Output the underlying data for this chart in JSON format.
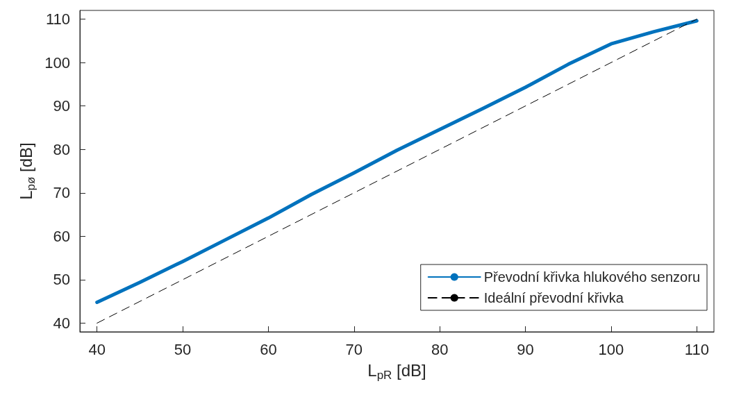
{
  "chart_data": {
    "type": "line",
    "xlabel": "L$_{pR}$ [dB]",
    "ylabel": "L$_{pø}$ [dB]",
    "series": [
      {
        "name": "Převodní křivka hlukového senzoru",
        "color": "#0072bd",
        "line_style": "solid",
        "x": [
          40,
          45,
          50,
          55,
          60,
          65,
          70,
          75,
          80,
          85,
          90,
          95,
          100,
          105,
          110
        ],
        "values": [
          44.8,
          49.4,
          54.2,
          59.2,
          64.2,
          69.6,
          74.6,
          79.8,
          84.6,
          89.4,
          94.3,
          99.6,
          104.3,
          107.1,
          109.6
        ]
      },
      {
        "name": "Ideální převodní křivka",
        "color": "#000000",
        "line_style": "dashed",
        "x": [
          40,
          110
        ],
        "values": [
          40,
          110
        ]
      }
    ],
    "xlim": [
      38,
      112
    ],
    "xticks": [
      40,
      50,
      60,
      70,
      80,
      90,
      100,
      110
    ],
    "ylim": [
      38,
      112
    ],
    "yticks": [
      40,
      50,
      60,
      70,
      80,
      90,
      100,
      110
    ],
    "grid": false,
    "legend": "bottom right",
    "marker": "none"
  }
}
